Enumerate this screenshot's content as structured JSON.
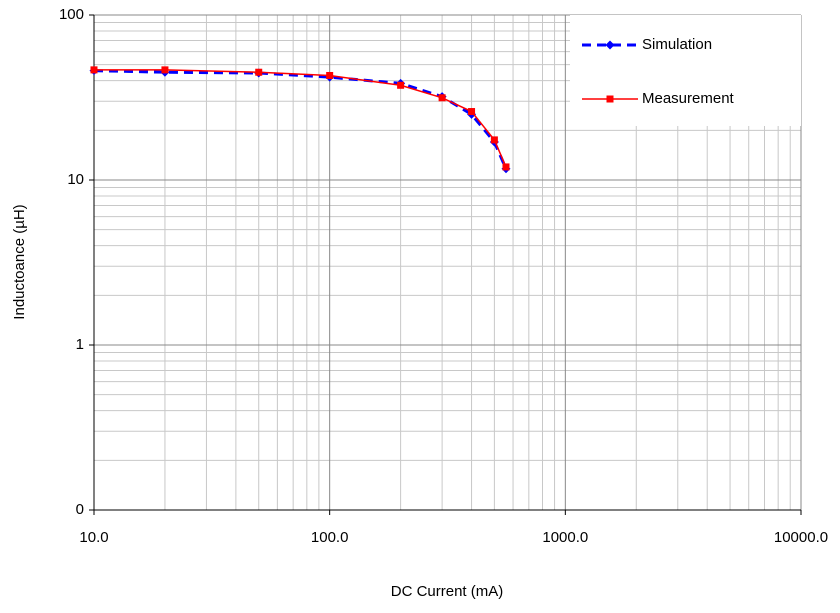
{
  "chart_data": {
    "type": "line",
    "x_label": "DC Current (mA)",
    "y_label": "Inductoance (µH)",
    "xlog": true,
    "ylog": true,
    "grid": true,
    "minor_grid": true,
    "legend": "upper right",
    "xlim": [
      10,
      10000
    ],
    "xticks": [
      {
        "value": 10,
        "label": "10.0"
      },
      {
        "value": 100,
        "label": "100.0"
      },
      {
        "value": 1000,
        "label": "1000.0"
      },
      {
        "value": 10000,
        "label": "10000.0"
      }
    ],
    "ylim": [
      0.1,
      100
    ],
    "yticks": [
      {
        "value": 0.1,
        "label": "0"
      },
      1,
      10,
      100
    ],
    "series": [
      {
        "name": "Simulation",
        "color": "#0000ff",
        "dash": true,
        "marker": "diamond",
        "x": [
          10,
          20,
          50,
          100,
          200,
          300,
          400,
          500,
          560
        ],
        "values": [
          46,
          45,
          44.5,
          42,
          38.5,
          32,
          25,
          17,
          11.7
        ]
      },
      {
        "name": "Measurement",
        "color": "#ff0000",
        "dash": false,
        "marker": "square",
        "x": [
          10,
          20,
          50,
          100,
          200,
          300,
          400,
          500,
          560
        ],
        "values": [
          46.5,
          46.5,
          45,
          43,
          37.5,
          31.5,
          26,
          17.5,
          12
        ]
      }
    ]
  }
}
